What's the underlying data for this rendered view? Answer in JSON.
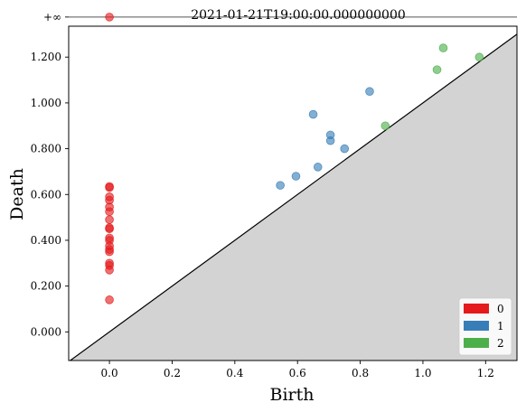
{
  "chart_data": {
    "type": "scatter",
    "title": "2021-01-21T19:00:00.000000000",
    "xlabel": "Birth",
    "ylabel": "Death",
    "xlim": [
      -0.13,
      1.3
    ],
    "ylim": [
      -0.125,
      1.335
    ],
    "infinity_level": 1.375,
    "infinity_label": "+∞",
    "x_ticks": [
      {
        "value": 0.0,
        "label": "0.0"
      },
      {
        "value": 0.2,
        "label": "0.2"
      },
      {
        "value": 0.4,
        "label": "0.4"
      },
      {
        "value": 0.6,
        "label": "0.6"
      },
      {
        "value": 0.8,
        "label": "0.8"
      },
      {
        "value": 1.0,
        "label": "1.0"
      },
      {
        "value": 1.2,
        "label": "1.2"
      }
    ],
    "y_ticks": [
      {
        "value": 0.0,
        "label": "0.000"
      },
      {
        "value": 0.2,
        "label": "0.200"
      },
      {
        "value": 0.4,
        "label": "0.400"
      },
      {
        "value": 0.6,
        "label": "0.600"
      },
      {
        "value": 0.8,
        "label": "0.800"
      },
      {
        "value": 1.0,
        "label": "1.000"
      },
      {
        "value": 1.2,
        "label": "1.200"
      }
    ],
    "diagonal": true,
    "legend_position": "bottom-right",
    "series": [
      {
        "name": "0",
        "color": "#e41a1c",
        "points": [
          [
            0.0,
            1.375
          ],
          [
            0.0,
            0.635
          ],
          [
            0.0,
            0.63
          ],
          [
            0.0,
            0.59
          ],
          [
            0.0,
            0.575
          ],
          [
            0.0,
            0.545
          ],
          [
            0.0,
            0.525
          ],
          [
            0.0,
            0.49
          ],
          [
            0.0,
            0.455
          ],
          [
            0.0,
            0.45
          ],
          [
            0.0,
            0.41
          ],
          [
            0.0,
            0.4
          ],
          [
            0.0,
            0.375
          ],
          [
            0.0,
            0.36
          ],
          [
            0.0,
            0.35
          ],
          [
            0.0,
            0.3
          ],
          [
            0.0,
            0.29
          ],
          [
            0.0,
            0.27
          ],
          [
            0.0,
            0.14
          ]
        ]
      },
      {
        "name": "1",
        "color": "#377eb8",
        "points": [
          [
            0.545,
            0.64
          ],
          [
            0.595,
            0.68
          ],
          [
            0.65,
            0.95
          ],
          [
            0.665,
            0.72
          ],
          [
            0.705,
            0.86
          ],
          [
            0.705,
            0.835
          ],
          [
            0.75,
            0.8
          ],
          [
            0.83,
            1.05
          ]
        ]
      },
      {
        "name": "2",
        "color": "#4daf4a",
        "points": [
          [
            0.88,
            0.9
          ],
          [
            1.045,
            1.145
          ],
          [
            1.065,
            1.24
          ],
          [
            1.18,
            1.2
          ]
        ]
      }
    ]
  }
}
